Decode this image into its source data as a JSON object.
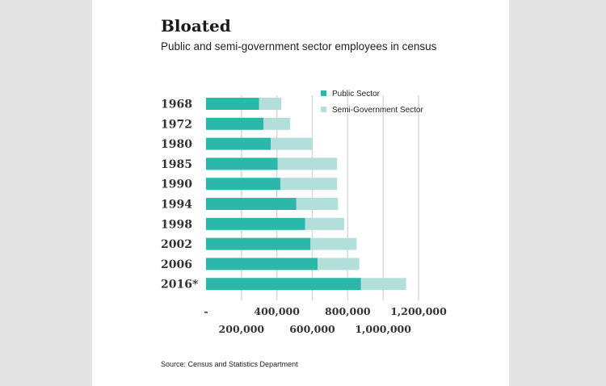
{
  "title": "Bloated",
  "subtitle": "Public and semi-government sector employees in census",
  "source": "Source: Census and Statistics Department",
  "colors": {
    "public": "#2bb8aa",
    "semi": "#b3dfdb",
    "grid": "#d9d9d9",
    "background": "#e4e4e4",
    "card": "#ffffff"
  },
  "chart_data": {
    "type": "bar",
    "orientation": "horizontal",
    "stacked": true,
    "title": "Bloated",
    "subtitle": "Public and semi-government sector employees in census",
    "categories": [
      "1968",
      "1972",
      "1980",
      "1985",
      "1990",
      "1994",
      "1998",
      "2002",
      "2006",
      "2016*"
    ],
    "series": [
      {
        "name": "Public Sector",
        "values": [
          300000,
          325000,
          365000,
          405000,
          420000,
          510000,
          560000,
          590000,
          630000,
          875000
        ]
      },
      {
        "name": "Semi-Government Sector",
        "values": [
          125000,
          150000,
          235000,
          335000,
          320000,
          235000,
          220000,
          260000,
          235000,
          255000
        ]
      }
    ],
    "xlim": [
      0,
      1200000
    ],
    "xticks": [
      {
        "value": 0,
        "label": "-"
      },
      {
        "value": 200000,
        "label": "200,000"
      },
      {
        "value": 400000,
        "label": "400,000"
      },
      {
        "value": 600000,
        "label": "600,000"
      },
      {
        "value": 800000,
        "label": "800,000"
      },
      {
        "value": 1000000,
        "label": "1,000,000"
      },
      {
        "value": 1200000,
        "label": "1,200,000"
      }
    ],
    "grid": true,
    "legend": "top-right"
  }
}
